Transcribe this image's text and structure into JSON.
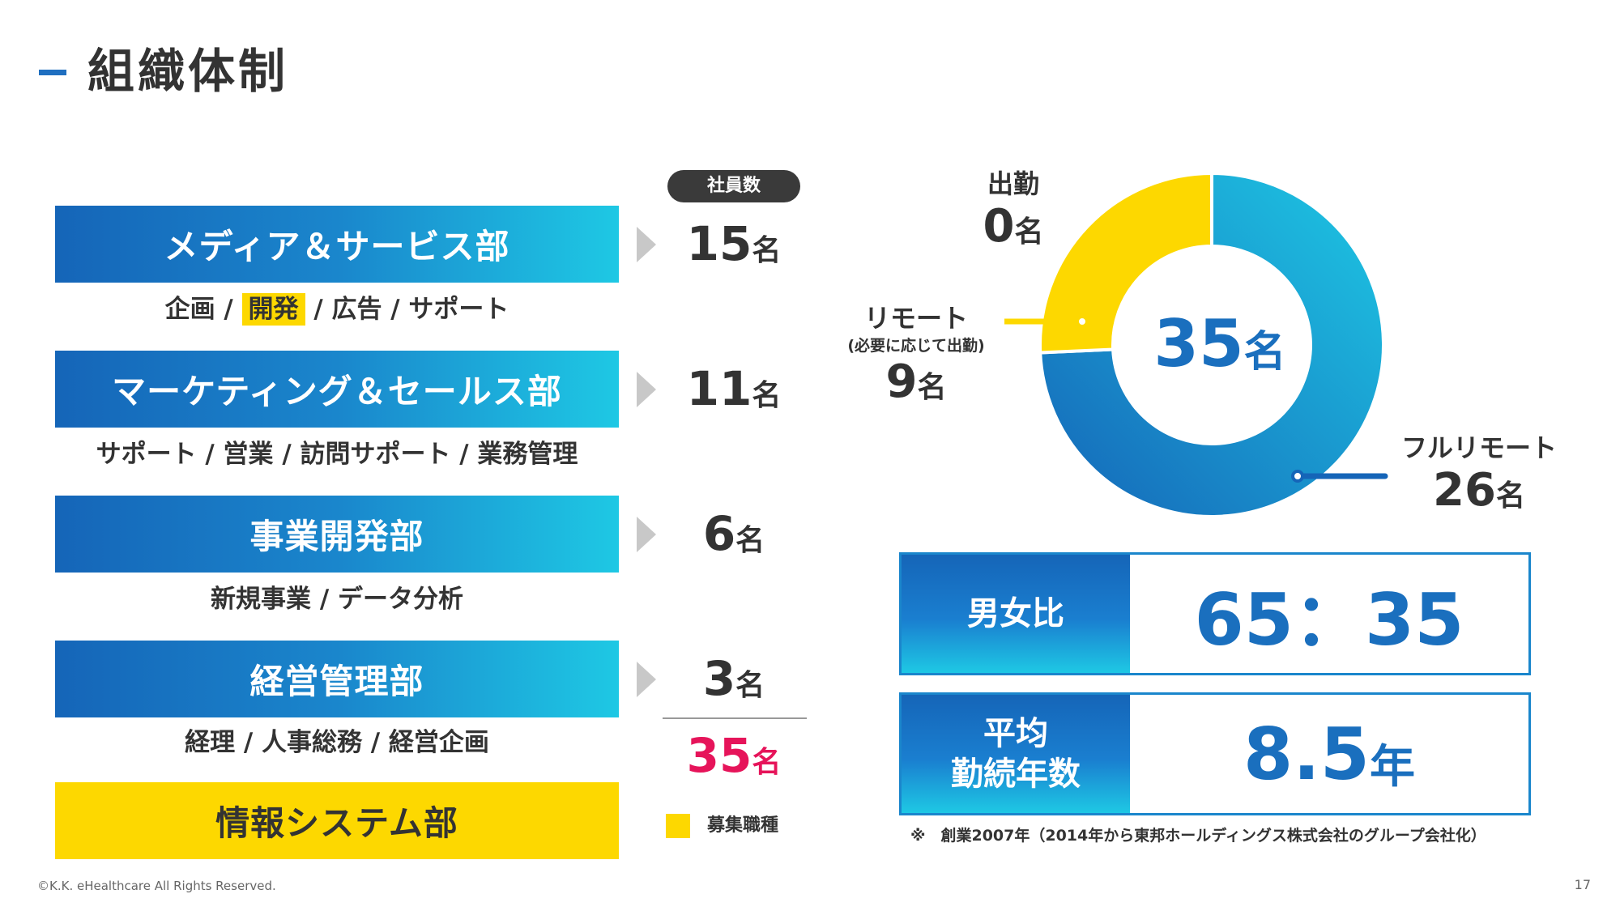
{
  "page": {
    "title": "組織体制",
    "copyright": "©K.K. eHealthcare All Rights Reserved.",
    "page_number": "17"
  },
  "colors": {
    "accent_blue": "#1a6fbe",
    "gradient_start": "#1565b8",
    "gradient_end": "#1ec8e4",
    "recruit_yellow": "#fdd800",
    "total_pink": "#e6145a"
  },
  "departments": {
    "header": "社員数",
    "unit": "名",
    "items": [
      {
        "name": "メディア＆サービス部",
        "count": "15",
        "sub_parts": [
          "企画 / ",
          "開発",
          " / 広告 / サポート"
        ],
        "recruiting": false
      },
      {
        "name": "マーケティング＆セールス部",
        "count": "11",
        "sub": "サポート / 営業 / 訪問サポート / 業務管理",
        "recruiting": false
      },
      {
        "name": "事業開発部",
        "count": "6",
        "sub": "新規事業 / データ分析",
        "recruiting": false
      },
      {
        "name": "経営管理部",
        "count": "3",
        "sub": "経理 / 人事総務 / 経営企画",
        "recruiting": false
      },
      {
        "name": "情報システム部",
        "recruiting": true
      }
    ],
    "total": "35",
    "legend": "募集職種"
  },
  "work_style": {
    "total": "35",
    "unit": "名",
    "segments": [
      {
        "name": "出勤",
        "count": 0,
        "color": "#1a6fbe"
      },
      {
        "name": "リモート",
        "note": "(必要に応じて出勤)",
        "count": 9,
        "color": "#fdd800"
      },
      {
        "name": "フルリモート",
        "count": 26,
        "color": "#1a86cc"
      }
    ]
  },
  "stats": {
    "gender_label": "男女比",
    "gender_value": "65：35",
    "tenure_label_1": "平均",
    "tenure_label_2": "勤続年数",
    "tenure_value": "8.5",
    "tenure_unit": "年"
  },
  "note": "※　創業2007年（2014年から東邦ホールディングス株式会社のグループ会社化）"
}
